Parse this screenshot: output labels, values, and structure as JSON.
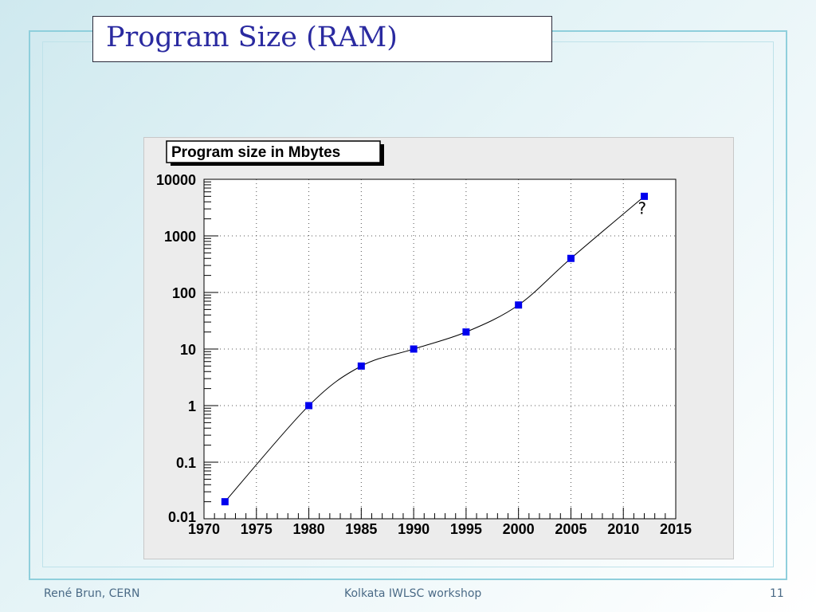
{
  "slide": {
    "title": "Program Size (RAM)",
    "footer_left": "René Brun, CERN",
    "footer_center": "Kolkata IWLSC workshop",
    "footer_right": "11"
  },
  "colors": {
    "title_text": "#2a2aa0",
    "marker": "#0000ee",
    "line": "#000000",
    "frame": "#8fcfdc"
  },
  "chart_data": {
    "type": "line",
    "title": "Program size in Mbytes",
    "xlabel": "",
    "ylabel": "",
    "xlim": [
      1970,
      2015
    ],
    "ylim": [
      0.01,
      10000
    ],
    "y_scale": "log",
    "grid": true,
    "x_ticks": [
      "1970",
      "1975",
      "1980",
      "1985",
      "1990",
      "1995",
      "2000",
      "2005",
      "2010",
      "2015"
    ],
    "y_ticks": [
      "0.01",
      "0.1",
      "1",
      "10",
      "100",
      "1000",
      "10000"
    ],
    "series": [
      {
        "x": [
          1972,
          1980,
          1985,
          1990,
          1995,
          2000,
          2005,
          2012
        ],
        "y": [
          0.02,
          1,
          5,
          10,
          20,
          60,
          400,
          5000
        ]
      }
    ],
    "annotations": [
      "?"
    ]
  }
}
